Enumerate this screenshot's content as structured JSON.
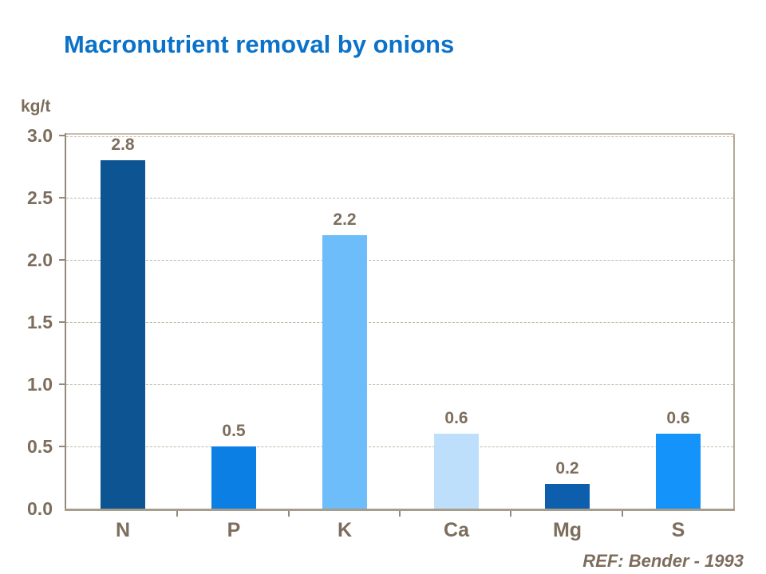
{
  "chart_data": {
    "type": "bar",
    "title": "Macronutrient removal by onions",
    "ylabel": "kg/t",
    "xlabel": "",
    "categories": [
      "N",
      "P",
      "K",
      "Ca",
      "Mg",
      "S"
    ],
    "values": [
      2.8,
      0.5,
      2.2,
      0.6,
      0.2,
      0.6
    ],
    "value_labels": [
      "2.8",
      "0.5",
      "2.2",
      "0.6",
      "0.2",
      "0.6"
    ],
    "bar_colors": [
      "#0D5493",
      "#0B7FE3",
      "#6CBDF9",
      "#BDDFFB",
      "#0D5FAD",
      "#1493FB"
    ],
    "ylim": [
      0,
      3.0
    ],
    "ytick_step": 0.5,
    "ytick_labels": [
      "0.0",
      "0.5",
      "1.0",
      "1.5",
      "2.0",
      "2.5",
      "3.0"
    ],
    "grid": "horizontal-dashed",
    "legend": "none",
    "annotation": "REF: Bender - 1993"
  },
  "colors": {
    "title_blue": "#0A72C8",
    "text_brown": "#7C6D5C",
    "axis_dark": "#95897A",
    "axis_bottom": "#A89C8B",
    "gridline": "#C3B7A6",
    "background": "#FFFFFF"
  }
}
